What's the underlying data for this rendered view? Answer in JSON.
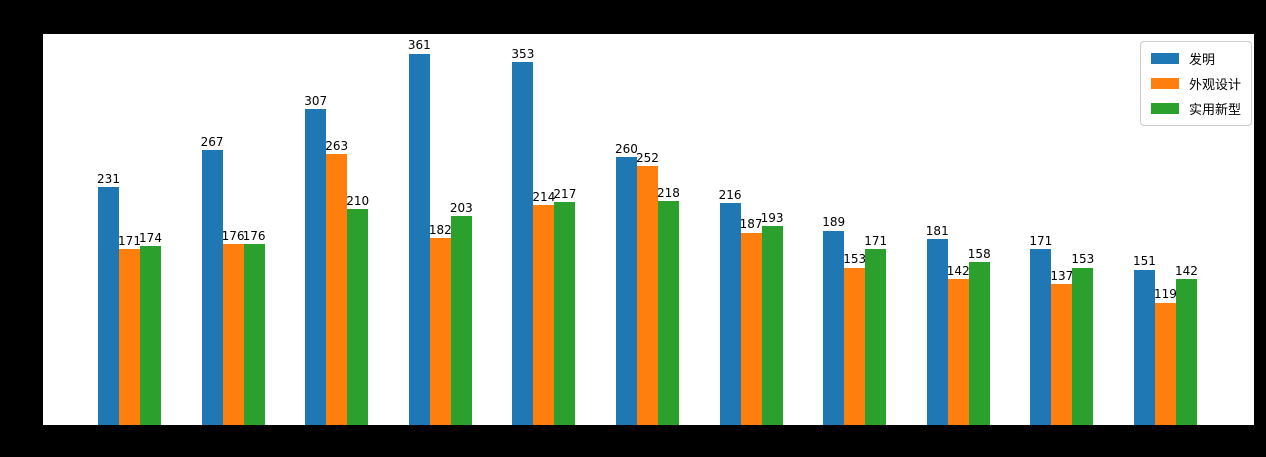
{
  "figure": {
    "background_color": "#000000",
    "plot_background_color": "#ffffff",
    "text_color": "#000000",
    "legend_border_color": "#cccccc"
  },
  "chart_data": {
    "type": "bar",
    "title": "",
    "xlabel": "",
    "ylabel": "",
    "group_count": 11,
    "categories": [
      "",
      "",
      "",
      "",
      "",
      "",
      "",
      "",
      "",
      "",
      ""
    ],
    "x_tick_labels_visible": false,
    "y_tick_labels_visible": false,
    "grid": false,
    "ylim": [
      0,
      380
    ],
    "bar_value_labels": true,
    "legend": {
      "position": "upper right",
      "entries": [
        "发明",
        "外观设计",
        "实用新型"
      ]
    },
    "series": [
      {
        "name": "发明",
        "color": "#1f77b4",
        "values": [
          231,
          267,
          307,
          361,
          353,
          260,
          216,
          189,
          181,
          171,
          151
        ]
      },
      {
        "name": "外观设计",
        "color": "#ff7f0e",
        "values": [
          171,
          176,
          263,
          182,
          214,
          252,
          187,
          153,
          142,
          137,
          119
        ]
      },
      {
        "name": "实用新型",
        "color": "#2ca02c",
        "values": [
          174,
          176,
          210,
          203,
          217,
          218,
          193,
          171,
          158,
          153,
          142
        ]
      }
    ]
  }
}
